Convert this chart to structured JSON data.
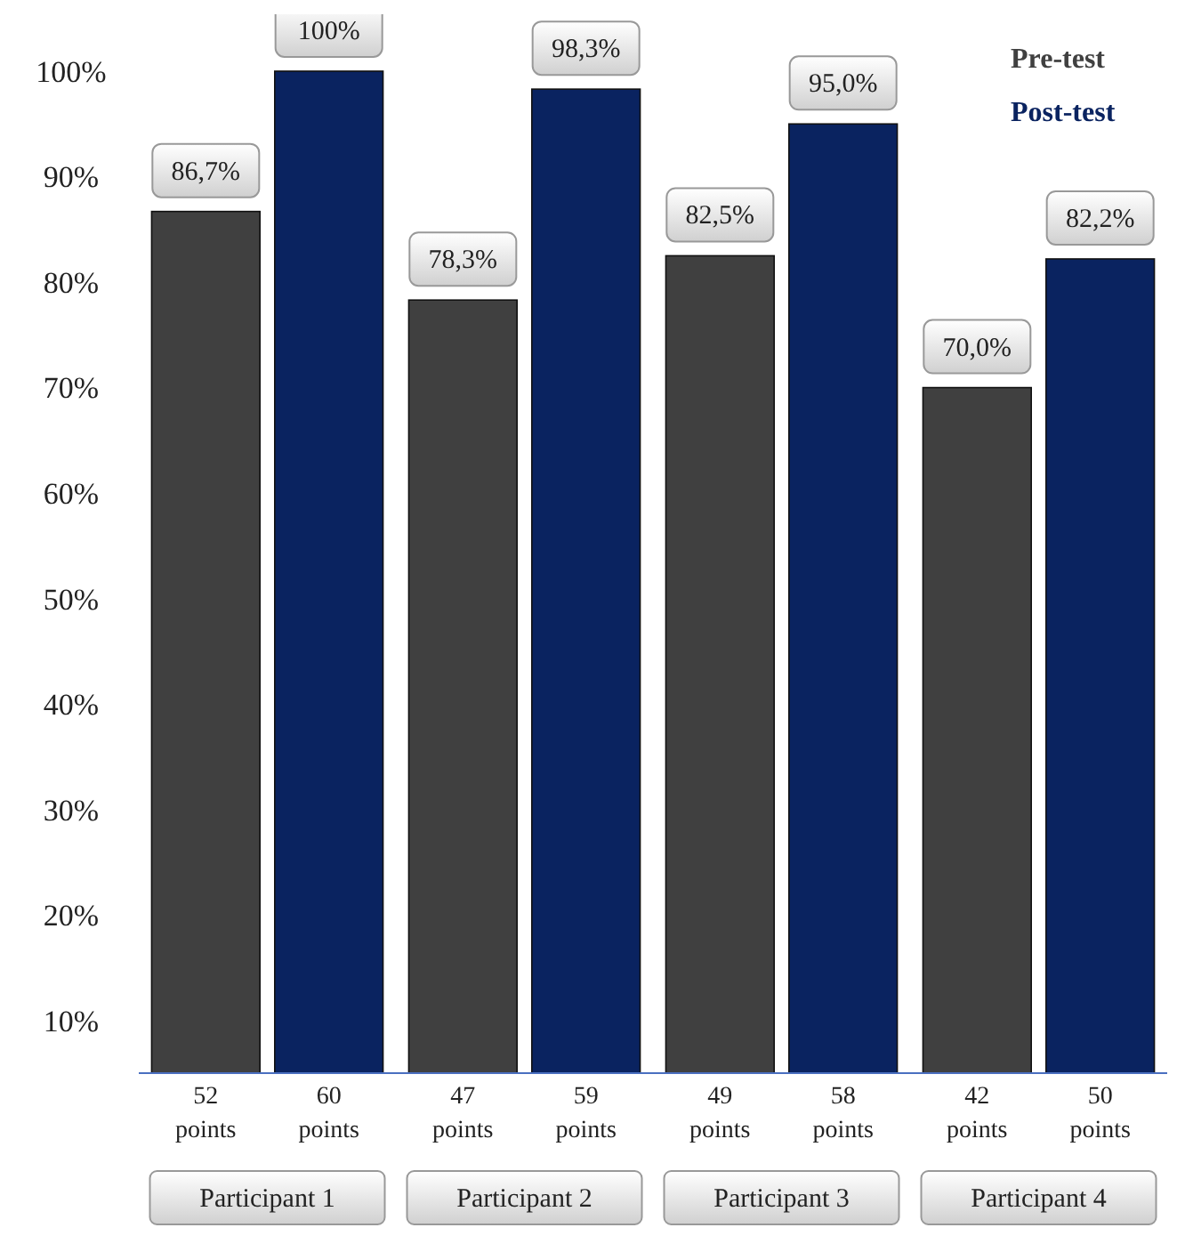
{
  "chart_data": {
    "type": "bar",
    "categories": [
      "Participant 1",
      "Participant 2",
      "Participant 3",
      "Participant 4"
    ],
    "series": [
      {
        "name": "Pre-test",
        "color": "#404040",
        "values": [
          86.7,
          78.3,
          82.5,
          70.0
        ],
        "value_labels": [
          "86,7%",
          "78,3%",
          "82,5%",
          "70,0%"
        ]
      },
      {
        "name": "Post-test",
        "color": "#0a2360",
        "values": [
          100,
          98.3,
          95.0,
          82.2
        ],
        "value_labels": [
          "100%",
          "98,3%",
          "95,0%",
          "82,2%"
        ]
      }
    ],
    "ylim": [
      5,
      100
    ],
    "yticks": [
      {
        "value": 10,
        "label": "10%"
      },
      {
        "value": 20,
        "label": "20%"
      },
      {
        "value": 30,
        "label": "30%"
      },
      {
        "value": 40,
        "label": "40%"
      },
      {
        "value": 50,
        "label": "50%"
      },
      {
        "value": 60,
        "label": "60%"
      },
      {
        "value": 70,
        "label": "70%"
      },
      {
        "value": 80,
        "label": "80%"
      },
      {
        "value": 90,
        "label": "90%"
      },
      {
        "value": 100,
        "label": "100%"
      }
    ],
    "annotations": [
      "52 points",
      "60 points",
      "47 points",
      "59 points",
      "49 points",
      "58 points",
      "42 points",
      "50 points"
    ],
    "legend": "top right",
    "grid": false
  }
}
